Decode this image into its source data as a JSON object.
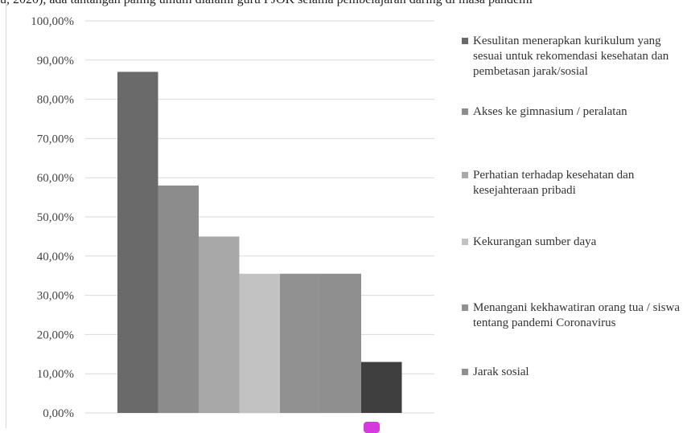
{
  "top_text": "u, 2020), ada tantangan paling umum dialami guru PJOK selama pembelajaran daring di masa pandemi",
  "colors": {
    "series": [
      "#6a6a6a",
      "#8c8c8c",
      "#a8a8a8",
      "#c2c2c2",
      "#919191",
      "#8f8f8f",
      "#3f3f3f"
    ],
    "grid": "#d9d9d9",
    "axis_text": "#444444",
    "marker": "#d63adf"
  },
  "chart_data": {
    "type": "bar",
    "ylim": [
      0,
      100
    ],
    "yticks": [
      "0,00%",
      "10,00%",
      "20,00%",
      "30,00%",
      "40,00%",
      "50,00%",
      "60,00%",
      "70,00%",
      "80,00%",
      "90,00%",
      "100,00%"
    ],
    "grid": true,
    "legend_position": "right",
    "series": [
      {
        "name": "Kesulitan menerapkan kurikulum yang sesuai untuk rekomendasi kesehatan dan pembetasan jarak/sosial",
        "value": 87
      },
      {
        "name": "Akses ke gimnasium / peralatan",
        "value": 58
      },
      {
        "name": "Perhatian terhadap kesehatan dan kesejahteraan pribadi",
        "value": 45
      },
      {
        "name": "Kekurangan sumber daya",
        "value": 35.5
      },
      {
        "name": "Menangani kekhawatiran orang tua / siswa tentang pandemi Coronavirus",
        "value": 35.5
      },
      {
        "name": "Jarak sosial",
        "value": 35.5
      },
      {
        "name": "",
        "value": 13
      }
    ]
  }
}
